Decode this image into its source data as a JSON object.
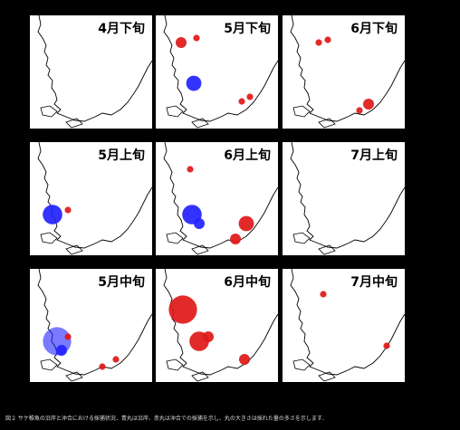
{
  "figure": {
    "caption": "図２ サケ稚魚の沿岸と沖合における採捕状況．青丸は沿岸、赤丸は沖合での採捕を示し、丸の大きさは採れた量の多さを示します．"
  },
  "colors": {
    "coastal": "#2222ff",
    "offshore": "#e01818",
    "coastline": "#000000",
    "panel_bg": "#ffffff"
  },
  "panels": [
    {
      "title": "4月下旬",
      "catches": []
    },
    {
      "title": "5月下旬",
      "catches": [
        {
          "type": "offshore",
          "size": 2
        },
        {
          "type": "offshore",
          "size": 1
        },
        {
          "type": "coastal",
          "size": 3
        },
        {
          "type": "offshore",
          "size": 1
        },
        {
          "type": "offshore",
          "size": 1
        }
      ]
    },
    {
      "title": "6月下旬",
      "catches": [
        {
          "type": "offshore",
          "size": 1
        },
        {
          "type": "offshore",
          "size": 1
        },
        {
          "type": "offshore",
          "size": 2
        },
        {
          "type": "offshore",
          "size": 1
        }
      ]
    },
    {
      "title": "5月上旬",
      "catches": [
        {
          "type": "coastal",
          "size": 4
        },
        {
          "type": "offshore",
          "size": 1
        }
      ]
    },
    {
      "title": "6月上旬",
      "catches": [
        {
          "type": "coastal",
          "size": 4
        },
        {
          "type": "coastal",
          "size": 2
        },
        {
          "type": "offshore",
          "size": 3
        },
        {
          "type": "offshore",
          "size": 2
        },
        {
          "type": "offshore",
          "size": 1
        }
      ]
    },
    {
      "title": "7月上旬",
      "catches": []
    },
    {
      "title": "5月中旬",
      "catches": [
        {
          "type": "coastal",
          "size": 6
        },
        {
          "type": "coastal",
          "size": 2
        },
        {
          "type": "offshore",
          "size": 1
        },
        {
          "type": "offshore",
          "size": 1
        },
        {
          "type": "offshore",
          "size": 1
        }
      ]
    },
    {
      "title": "6月中旬",
      "catches": [
        {
          "type": "offshore",
          "size": 6
        },
        {
          "type": "offshore",
          "size": 4
        },
        {
          "type": "offshore",
          "size": 2
        },
        {
          "type": "offshore",
          "size": 2
        }
      ]
    },
    {
      "title": "7月中旬",
      "catches": [
        {
          "type": "offshore",
          "size": 1
        },
        {
          "type": "offshore",
          "size": 1
        }
      ]
    }
  ]
}
